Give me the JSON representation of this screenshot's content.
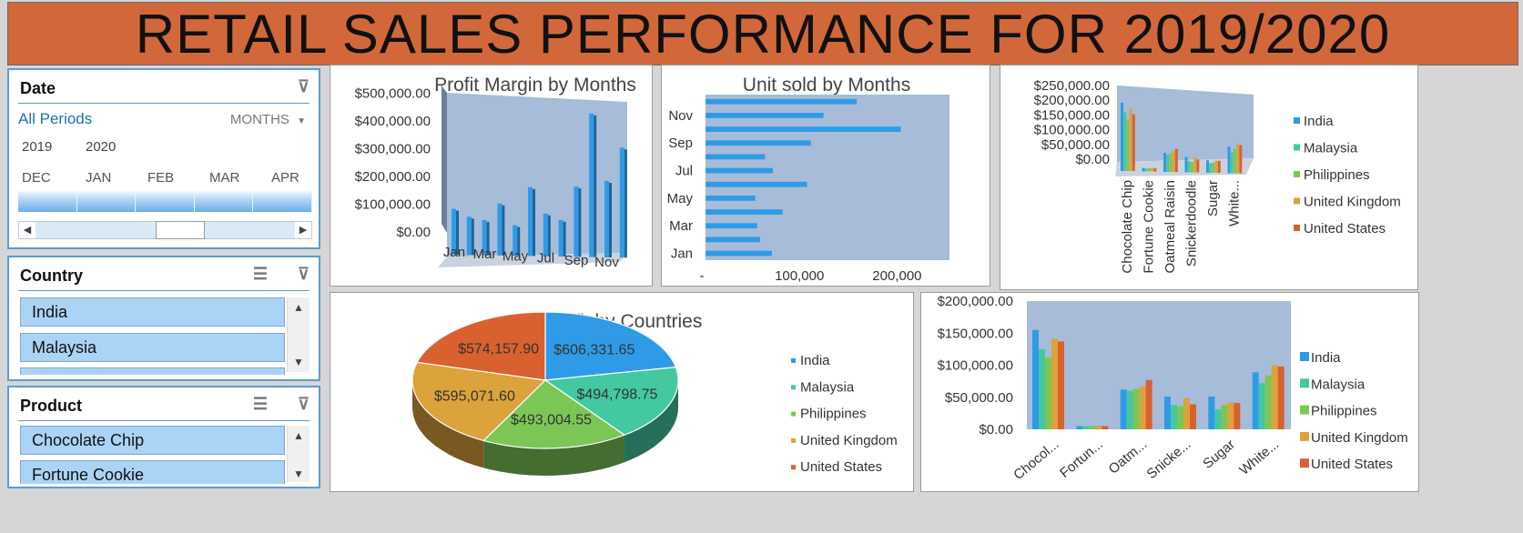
{
  "dashboard": {
    "title": "RETAIL SALES PERFORMANCE FOR 2019/2020"
  },
  "date_slicer": {
    "header": "Date",
    "all_periods": "All Periods",
    "level": "MONTHS",
    "years": [
      "2019",
      "2020"
    ],
    "months": [
      "DEC",
      "JAN",
      "FEB",
      "MAR",
      "APR"
    ]
  },
  "country_slicer": {
    "header": "Country",
    "items": [
      "India",
      "Malaysia"
    ]
  },
  "product_slicer": {
    "header": "Product",
    "items": [
      "Chocolate Chip",
      "Fortune Cookie"
    ]
  },
  "colors": {
    "title_bar": "#d2683a",
    "plot_area": "#a6bcd8",
    "bar_blue": "#2f9be8",
    "India": "#2f9be8",
    "Malaysia": "#43c8a2",
    "Philippines": "#7cc656",
    "United Kingdom": "#dca23c",
    "United States": "#d9612f"
  },
  "chart_data": [
    {
      "type": "bar",
      "title": "Profit Margin by Months",
      "categories": [
        "Jan",
        "Feb",
        "Mar",
        "Apr",
        "May",
        "Jun",
        "Jul",
        "Aug",
        "Sep",
        "Oct",
        "Nov",
        "Dec"
      ],
      "x_tick_labels": [
        "Jan",
        "Mar",
        "May",
        "Jul",
        "Sep",
        "Nov"
      ],
      "values": [
        150000,
        125000,
        115000,
        170000,
        100000,
        225000,
        140000,
        120000,
        230000,
        470000,
        250000,
        360000
      ],
      "y_tick_labels": [
        "$0.00",
        "$100,000.00",
        "$200,000.00",
        "$300,000.00",
        "$400,000.00",
        "$500,000.00"
      ],
      "ylim": [
        0,
        500000
      ]
    },
    {
      "type": "bar",
      "orientation": "horizontal",
      "title": "Unit sold by Months",
      "categories": [
        "Jan",
        "Feb",
        "Mar",
        "Apr",
        "May",
        "Jun",
        "Jul",
        "Aug",
        "Sep",
        "Oct",
        "Nov",
        "Dec"
      ],
      "y_tick_labels": [
        "Jan",
        "Mar",
        "May",
        "Jul",
        "Sep",
        "Nov"
      ],
      "values": [
        68000,
        56000,
        53000,
        79000,
        51000,
        104000,
        69000,
        61000,
        108000,
        200000,
        121000,
        155000
      ],
      "x_tick_labels": [
        "-",
        "100,000",
        "200,000"
      ],
      "xlim": [
        0,
        250000
      ]
    },
    {
      "type": "bar",
      "variant": "3d-clustered",
      "categories": [
        "Chocolate Chip",
        "Fortune Cookie",
        "Oatmeal Raisin",
        "Snickerdoodle",
        "Sugar",
        "White..."
      ],
      "series": [
        {
          "name": "India",
          "values": [
            229000,
            12000,
            64000,
            51000,
            42000,
            90000
          ]
        },
        {
          "name": "Malaysia",
          "values": [
            197000,
            10000,
            58000,
            38000,
            32000,
            70000
          ]
        },
        {
          "name": "Philippines",
          "values": [
            172000,
            11000,
            63000,
            35000,
            34000,
            82000
          ]
        },
        {
          "name": "United Kingdom",
          "values": [
            210000,
            12000,
            70000,
            50000,
            41000,
            98000
          ]
        },
        {
          "name": "United States",
          "values": [
            190000,
            11000,
            77000,
            43000,
            40000,
            94000
          ]
        }
      ],
      "y_tick_labels": [
        "$0.00",
        "$50,000.00",
        "$100,000.00",
        "$150,000.00",
        "$200,000.00",
        "$250,000.00"
      ],
      "ylim": [
        0,
        250000
      ],
      "legend": "right"
    },
    {
      "type": "pie",
      "title": "Profit by Countries",
      "labels": [
        "India",
        "Malaysia",
        "Philippines",
        "United Kingdom",
        "United States"
      ],
      "values": [
        606331.65,
        494798.75,
        493004.55,
        595071.6,
        574157.9
      ],
      "data_labels": [
        "$606,331.65",
        "$494,798.75",
        "$493,004.55",
        "$595,071.60",
        "$574,157.90"
      ],
      "legend": "right"
    },
    {
      "type": "bar",
      "categories": [
        "Chocolate Chip",
        "Fortune Cookie",
        "Oatmeal Raisin",
        "Snickerdoodle",
        "Sugar",
        "White Chocolate"
      ],
      "x_tick_labels": [
        "Chocol...",
        "Fortun...",
        "Oatm...",
        "Snicke...",
        "Sugar",
        "White..."
      ],
      "series": [
        {
          "name": "India",
          "values": [
            155000,
            5000,
            62000,
            51000,
            51000,
            89000
          ]
        },
        {
          "name": "Malaysia",
          "values": [
            125000,
            5000,
            60000,
            38000,
            31000,
            72000
          ]
        },
        {
          "name": "Philippines",
          "values": [
            112000,
            5000,
            63000,
            36000,
            38000,
            84000
          ]
        },
        {
          "name": "United Kingdom",
          "values": [
            141000,
            5000,
            67000,
            49000,
            42000,
            100000
          ]
        },
        {
          "name": "United States",
          "values": [
            137000,
            5000,
            77000,
            39000,
            41000,
            98000
          ]
        }
      ],
      "y_tick_labels": [
        "$0.00",
        "$50,000.00",
        "$100,000.00",
        "$150,000.00",
        "$200,000.00"
      ],
      "ylim": [
        0,
        200000
      ],
      "legend": "right"
    }
  ]
}
